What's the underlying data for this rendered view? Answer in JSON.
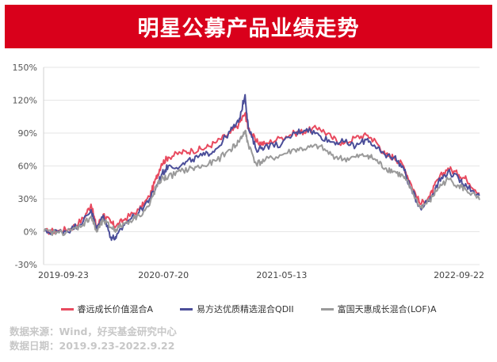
{
  "banner": {
    "title": "明星公募产品业绩走势"
  },
  "footer": {
    "source": "数据来源：Wind，好买基金研究中心",
    "date": "数据日期：2019.9.23-2022.9.22"
  },
  "chart_data": {
    "type": "line",
    "title": "",
    "xlabel": "",
    "ylabel": "",
    "ylim": [
      -30,
      150
    ],
    "yticks": [
      -30,
      0,
      30,
      60,
      90,
      120,
      150
    ],
    "ytick_labels": [
      "-30%",
      "0%",
      "30%",
      "60%",
      "90%",
      "120%",
      "150%"
    ],
    "xlim": [
      "2019-09-23",
      "2022-09-22"
    ],
    "xticks": [
      "2019-09-23",
      "2020-07-20",
      "2021-05-13",
      "2022-09-22"
    ],
    "grid": "horizontal",
    "legend_position": "bottom",
    "series": [
      {
        "name": "睿远成长价值混合A",
        "color": "#e84a5f",
        "x": [
          "2019-09-23",
          "2019-11-01",
          "2019-12-01",
          "2020-01-01",
          "2020-01-20",
          "2020-02-03",
          "2020-02-20",
          "2020-03-10",
          "2020-03-23",
          "2020-04-15",
          "2020-05-20",
          "2020-06-15",
          "2020-07-01",
          "2020-07-15",
          "2020-08-01",
          "2020-09-01",
          "2020-10-01",
          "2020-11-01",
          "2020-12-01",
          "2021-01-04",
          "2021-01-25",
          "2021-02-10",
          "2021-02-18",
          "2021-03-10",
          "2021-04-01",
          "2021-05-13",
          "2021-06-15",
          "2021-07-15",
          "2021-08-15",
          "2021-09-15",
          "2021-10-15",
          "2021-11-15",
          "2021-12-15",
          "2022-01-05",
          "2022-01-28",
          "2022-02-20",
          "2022-03-15",
          "2022-04-01",
          "2022-04-26",
          "2022-05-20",
          "2022-06-10",
          "2022-07-05",
          "2022-08-01",
          "2022-08-20",
          "2022-09-22"
        ],
        "values": [
          0,
          1,
          3,
          12,
          25,
          4,
          16,
          8,
          5,
          12,
          20,
          32,
          48,
          62,
          68,
          72,
          74,
          76,
          82,
          90,
          98,
          108,
          95,
          82,
          80,
          86,
          90,
          92,
          95,
          86,
          80,
          86,
          88,
          82,
          70,
          68,
          60,
          45,
          25,
          32,
          48,
          58,
          52,
          48,
          35
        ]
      },
      {
        "name": "易方达优质精选混合QDII",
        "color": "#4b4e99",
        "x": [
          "2019-09-23",
          "2019-11-01",
          "2019-12-01",
          "2020-01-01",
          "2020-01-20",
          "2020-02-03",
          "2020-02-20",
          "2020-03-10",
          "2020-03-23",
          "2020-04-15",
          "2020-05-20",
          "2020-06-15",
          "2020-07-01",
          "2020-07-15",
          "2020-08-01",
          "2020-09-01",
          "2020-10-01",
          "2020-11-01",
          "2020-12-01",
          "2021-01-04",
          "2021-01-25",
          "2021-02-10",
          "2021-02-18",
          "2021-03-10",
          "2021-04-01",
          "2021-05-13",
          "2021-06-15",
          "2021-07-15",
          "2021-08-15",
          "2021-09-15",
          "2021-10-15",
          "2021-11-15",
          "2021-12-15",
          "2022-01-05",
          "2022-01-28",
          "2022-02-20",
          "2022-03-15",
          "2022-04-01",
          "2022-04-26",
          "2022-05-20",
          "2022-06-10",
          "2022-07-05",
          "2022-08-01",
          "2022-08-20",
          "2022-09-22"
        ],
        "values": [
          0,
          0,
          2,
          10,
          20,
          2,
          15,
          -5,
          -6,
          8,
          18,
          30,
          40,
          52,
          60,
          60,
          66,
          70,
          76,
          92,
          100,
          125,
          95,
          75,
          78,
          80,
          90,
          94,
          88,
          82,
          82,
          78,
          85,
          76,
          70,
          68,
          58,
          40,
          22,
          30,
          45,
          55,
          48,
          42,
          33
        ]
      },
      {
        "name": "富国天惠成长混合(LOF)A",
        "color": "#9a9a9a",
        "x": [
          "2019-09-23",
          "2019-11-01",
          "2019-12-01",
          "2020-01-01",
          "2020-01-20",
          "2020-02-03",
          "2020-02-20",
          "2020-03-10",
          "2020-03-23",
          "2020-04-15",
          "2020-05-20",
          "2020-06-15",
          "2020-07-01",
          "2020-07-15",
          "2020-08-01",
          "2020-09-01",
          "2020-10-01",
          "2020-11-01",
          "2020-12-01",
          "2021-01-04",
          "2021-01-25",
          "2021-02-10",
          "2021-02-18",
          "2021-03-10",
          "2021-04-01",
          "2021-05-13",
          "2021-06-15",
          "2021-07-15",
          "2021-08-15",
          "2021-09-15",
          "2021-10-15",
          "2021-11-15",
          "2021-12-15",
          "2022-01-05",
          "2022-01-28",
          "2022-02-20",
          "2022-03-15",
          "2022-04-01",
          "2022-04-26",
          "2022-05-20",
          "2022-06-10",
          "2022-07-05",
          "2022-08-01",
          "2022-08-20",
          "2022-09-22"
        ],
        "values": [
          0,
          -1,
          1,
          7,
          14,
          0,
          10,
          4,
          2,
          8,
          15,
          24,
          40,
          48,
          50,
          55,
          58,
          60,
          65,
          75,
          82,
          92,
          80,
          62,
          65,
          70,
          75,
          76,
          78,
          70,
          66,
          68,
          70,
          65,
          58,
          55,
          50,
          40,
          22,
          28,
          40,
          48,
          42,
          38,
          29
        ]
      }
    ]
  }
}
